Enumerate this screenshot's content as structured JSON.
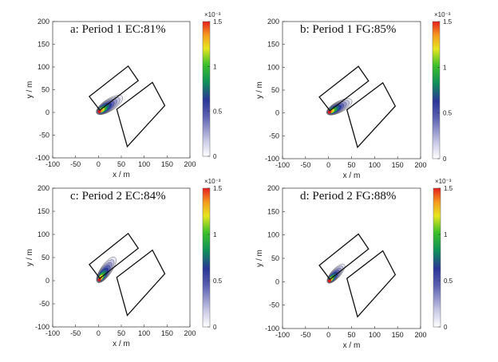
{
  "chart_data": [
    {
      "type": "heatmap",
      "title": "a: Period 1 EC:81%",
      "xlabel": "x / m",
      "ylabel": "y / m",
      "xlim": [
        -100,
        200
      ],
      "ylim": [
        -100,
        200
      ],
      "xticks": [
        "-100",
        "-50",
        "0",
        "50",
        "100",
        "150",
        "200"
      ],
      "yticks": [
        "-100",
        "-50",
        "0",
        "50",
        "100",
        "150",
        "200"
      ],
      "colorbar": {
        "range": [
          0,
          1.5
        ],
        "exponent": "×10⁻³",
        "ticks": [
          "0",
          "0.5",
          "1",
          "1.5"
        ],
        "colormap": "white-blue-green-yellow-red"
      },
      "source": [
        2,
        2
      ],
      "plume_direction_deg": 33,
      "plume_length_m": 60,
      "plume_width_m": 26
    },
    {
      "type": "heatmap",
      "title": "b: Period 1 FG:85%",
      "xlabel": "x / m",
      "ylabel": "y / m",
      "xlim": [
        -100,
        200
      ],
      "ylim": [
        -100,
        200
      ],
      "xticks": [
        "-100",
        "-50",
        "0",
        "50",
        "100",
        "150",
        "200"
      ],
      "yticks": [
        "-100",
        "-50",
        "0",
        "50",
        "100",
        "150",
        "200"
      ],
      "colorbar": {
        "range": [
          0,
          1.5
        ],
        "exponent": "×10⁻³",
        "ticks": [
          "0",
          "0.5",
          "1",
          "1.5"
        ],
        "colormap": "white-blue-green-yellow-red"
      },
      "source": [
        2,
        2
      ],
      "plume_direction_deg": 28,
      "plume_length_m": 55,
      "plume_width_m": 24
    },
    {
      "type": "heatmap",
      "title": "c: Period 2 EC:84%",
      "xlabel": "x / m",
      "ylabel": "y / m",
      "xlim": [
        -100,
        200
      ],
      "ylim": [
        -100,
        200
      ],
      "xticks": [
        "-100",
        "-50",
        "0",
        "50",
        "100",
        "150",
        "200"
      ],
      "yticks": [
        "-100",
        "-50",
        "0",
        "50",
        "100",
        "150",
        "200"
      ],
      "colorbar": {
        "range": [
          0,
          1.5
        ],
        "exponent": "×10⁻³",
        "ticks": [
          "0",
          "0.5",
          "1",
          "1.5"
        ],
        "colormap": "white-blue-green-yellow-red"
      },
      "source": [
        2,
        2
      ],
      "plume_direction_deg": 55,
      "plume_length_m": 60,
      "plume_width_m": 24
    },
    {
      "type": "heatmap",
      "title": "d: Period 2 FG:88%",
      "xlabel": "x / m",
      "ylabel": "y / m",
      "xlim": [
        -100,
        200
      ],
      "ylim": [
        -100,
        200
      ],
      "xticks": [
        "-100",
        "-50",
        "0",
        "50",
        "100",
        "150",
        "200"
      ],
      "yticks": [
        "-100",
        "-50",
        "0",
        "50",
        "100",
        "150",
        "200"
      ],
      "colorbar": {
        "range": [
          0,
          1.5
        ],
        "exponent": "×10⁻³",
        "ticks": [
          "0",
          "0.5",
          "1",
          "1.5"
        ],
        "colormap": "white-blue-green-yellow-red"
      },
      "source": [
        2,
        2
      ],
      "plume_direction_deg": 48,
      "plume_length_m": 48,
      "plume_width_m": 20
    }
  ],
  "field": {
    "rect_a": [
      [
        -20,
        35
      ],
      [
        65,
        102
      ],
      [
        87,
        70
      ],
      [
        3,
        5
      ]
    ],
    "rect_b": [
      [
        40,
        7
      ],
      [
        118,
        66
      ],
      [
        145,
        15
      ],
      [
        63,
        -75
      ]
    ]
  }
}
